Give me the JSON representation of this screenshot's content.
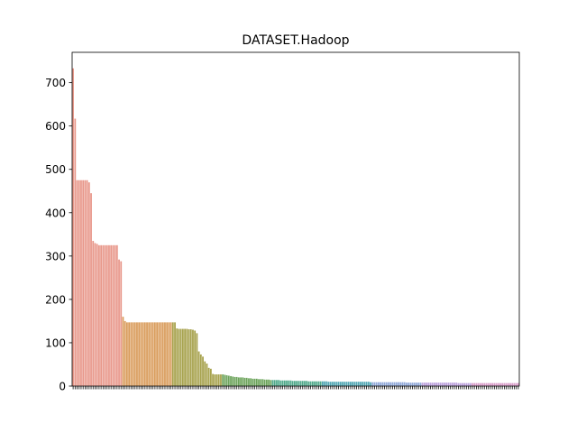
{
  "chart_data": {
    "type": "bar",
    "title": "DATASET.Hadoop",
    "xlabel": "",
    "ylabel": "",
    "ylim": [
      0,
      770
    ],
    "yticks": [
      0,
      100,
      200,
      300,
      400,
      500,
      600,
      700
    ],
    "grid": false,
    "legend": "none",
    "values": [
      733,
      617,
      475,
      475,
      475,
      475,
      475,
      475,
      470,
      445,
      335,
      330,
      328,
      325,
      325,
      325,
      325,
      325,
      325,
      325,
      325,
      325,
      325,
      292,
      288,
      160,
      150,
      147,
      147,
      147,
      147,
      147,
      147,
      147,
      147,
      147,
      147,
      147,
      147,
      147,
      147,
      147,
      147,
      147,
      147,
      147,
      147,
      147,
      147,
      147,
      147,
      147,
      133,
      132,
      132,
      132,
      132,
      132,
      131,
      131,
      130,
      128,
      122,
      80,
      73,
      68,
      57,
      52,
      42,
      40,
      28,
      27,
      27,
      27,
      27,
      27,
      26,
      25,
      24,
      23,
      22,
      21,
      21,
      20,
      20,
      20,
      19,
      19,
      18,
      18,
      17,
      17,
      17,
      16,
      16,
      16,
      15,
      15,
      15,
      14,
      14,
      14,
      14,
      14,
      13,
      13,
      13,
      13,
      13,
      13,
      12,
      12,
      12,
      12,
      12,
      12,
      12,
      12,
      11,
      11,
      11,
      11,
      11,
      11,
      11,
      11,
      11,
      11,
      10,
      10,
      10,
      10,
      10,
      10,
      10,
      10,
      10,
      10,
      10,
      10,
      10,
      10,
      10,
      10,
      10,
      10,
      10,
      10,
      10,
      9,
      9,
      9,
      9,
      9,
      9,
      9,
      9,
      9,
      9,
      9,
      9,
      9,
      9,
      9,
      9,
      9,
      9,
      8,
      8,
      8,
      8,
      8,
      8,
      8,
      8,
      8,
      8,
      8,
      8,
      8,
      8,
      8,
      8,
      8,
      8,
      8,
      8,
      8,
      8,
      8,
      8,
      8,
      8,
      7,
      7,
      7,
      7,
      7,
      7,
      7,
      7,
      7,
      7,
      7,
      7,
      7,
      7,
      7,
      7,
      7,
      7,
      7,
      7,
      7,
      7,
      7,
      7,
      7,
      7,
      7,
      7,
      7,
      7,
      7
    ],
    "palette": [
      "#e8978a",
      "#d99b5a",
      "#a6a14b",
      "#6ba35a",
      "#4fa98a",
      "#4fa6b3",
      "#8fa8d9",
      "#bb9fdd",
      "#d99ac8"
    ],
    "x_tick_labels_legible": false
  }
}
